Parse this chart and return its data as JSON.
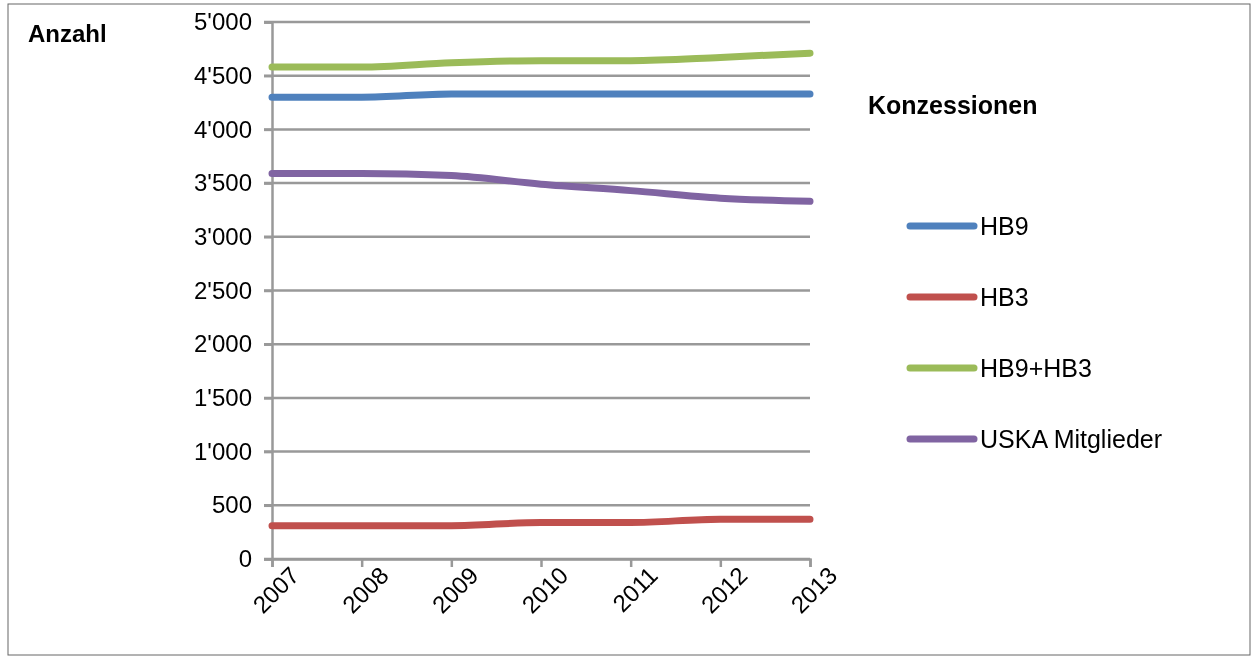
{
  "chart_data": {
    "type": "line",
    "ylabel": "Anzahl",
    "legend_title": "Konzessionen",
    "categories": [
      "2007",
      "2008",
      "2009",
      "2010",
      "2011",
      "2012",
      "2013"
    ],
    "series": [
      {
        "name": "HB9",
        "color": "#4f81bd",
        "values": [
          4300,
          4300,
          4330,
          4330,
          4330,
          4330,
          4330
        ]
      },
      {
        "name": "HB3",
        "color": "#c0504d",
        "values": [
          310,
          310,
          310,
          340,
          340,
          370,
          370
        ]
      },
      {
        "name": "HB9+HB3",
        "color": "#9bbb59",
        "values": [
          4580,
          4580,
          4620,
          4640,
          4640,
          4670,
          4710
        ]
      },
      {
        "name": "USKA Mitglieder",
        "color": "#8064a2",
        "values": [
          3590,
          3590,
          3570,
          3490,
          3430,
          3360,
          3330
        ]
      }
    ],
    "ylim": [
      0,
      5000
    ],
    "yticks": [
      0,
      500,
      {
        "value": 1000,
        "label": "1'000"
      },
      {
        "value": 1500,
        "label": "1'500"
      },
      {
        "value": 2000,
        "label": "2'000"
      },
      {
        "value": 2500,
        "label": "2'500"
      },
      {
        "value": 3000,
        "label": "3'000"
      },
      {
        "value": 3500,
        "label": "3'500"
      },
      {
        "value": 4000,
        "label": "4'000"
      },
      {
        "value": 4500,
        "label": "4'500"
      },
      {
        "value": 5000,
        "label": "5'000"
      }
    ],
    "grid": "y",
    "legend": "right",
    "marker": "none",
    "line_style": "solid"
  }
}
